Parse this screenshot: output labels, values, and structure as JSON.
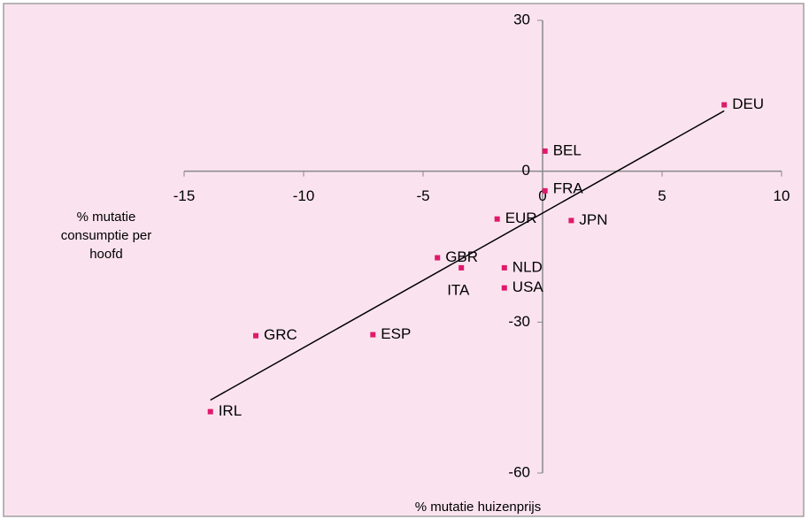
{
  "chart_data": {
    "type": "scatter",
    "categories": [
      "DEU",
      "BEL",
      "FRA",
      "JPN",
      "EUR",
      "GBR",
      "ITA",
      "NLD",
      "USA",
      "GRC",
      "ESP",
      "IRL"
    ],
    "x": [
      7.6,
      0.1,
      0.1,
      1.2,
      -1.9,
      -4.4,
      -3.4,
      -1.6,
      -1.6,
      -12.0,
      -7.1,
      -13.9
    ],
    "values": [
      13.2,
      4.0,
      -3.9,
      -9.8,
      -9.5,
      -17.2,
      -19.2,
      -19.2,
      -23.2,
      -32.7,
      -32.5,
      -47.8
    ],
    "color": "#e0196b",
    "trendline": {
      "x": [
        -13.9,
        7.6
      ],
      "y": [
        -45.5,
        12.0
      ],
      "color": "#000000"
    },
    "xlabel": "% mutatie huizenprijs",
    "ylabel": [
      "% mutatie",
      "consumptie per",
      "hoofd"
    ],
    "xlim": [
      -15,
      10
    ],
    "xticks": [
      -15,
      -10,
      -5,
      0,
      5,
      10
    ],
    "ylim": [
      -60,
      30
    ],
    "yticks": [
      30,
      0,
      -30,
      -60
    ]
  }
}
